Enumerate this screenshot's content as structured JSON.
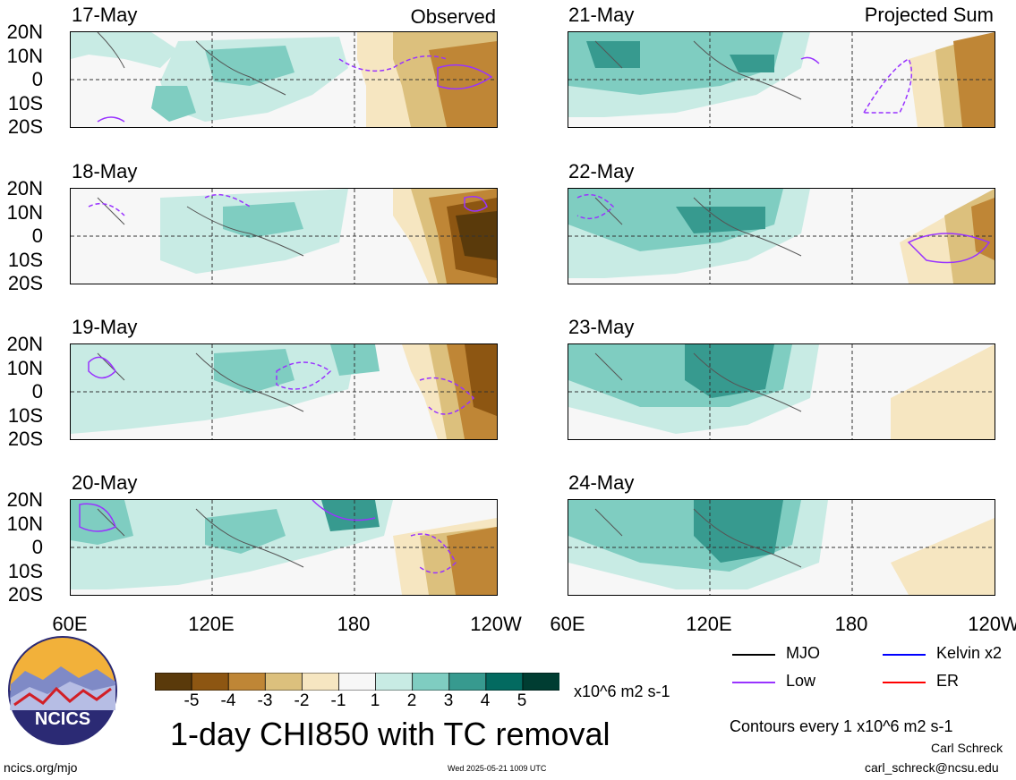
{
  "titles": {
    "observed": "Observed",
    "projected": "Projected Sum"
  },
  "panels_left": [
    "17-May",
    "18-May",
    "19-May",
    "20-May"
  ],
  "panels_right": [
    "21-May",
    "22-May",
    "23-May",
    "24-May"
  ],
  "lat_ticks": [
    "20N",
    "10N",
    "0",
    "10S",
    "20S"
  ],
  "lon_ticks": [
    "60E",
    "120E",
    "180",
    "120W"
  ],
  "colorbar": {
    "labels": [
      "-5",
      "-4",
      "-3",
      "-2",
      "-1",
      "1",
      "2",
      "3",
      "4",
      "5"
    ],
    "colors": [
      "#5a3a0b",
      "#8d5612",
      "#bf8636",
      "#dcc07d",
      "#f6e6c1",
      "#f7f7f7",
      "#c8ebe4",
      "#7fcdc1",
      "#379a8f",
      "#036a60",
      "#003d32"
    ],
    "units": "x10^6 m2 s-1"
  },
  "main_title": "1-day CHI850 with TC removal",
  "legend": [
    {
      "label": "MJO",
      "color": "#000000"
    },
    {
      "label": "Kelvin x2",
      "color": "#0000ff"
    },
    {
      "label": "Low",
      "color": "#9933ff"
    },
    {
      "label": "ER",
      "color": "#ff0000"
    }
  ],
  "contour_note": "Contours every 1 x10^6 m2 s-1",
  "logo": {
    "text": "NCICS"
  },
  "footer": {
    "url": "ncics.org/mjo",
    "timestamp": "Wed 2025-05-21 1009 UTC",
    "author": "Carl Schreck",
    "email": "carl_schreck@ncsu.edu"
  }
}
